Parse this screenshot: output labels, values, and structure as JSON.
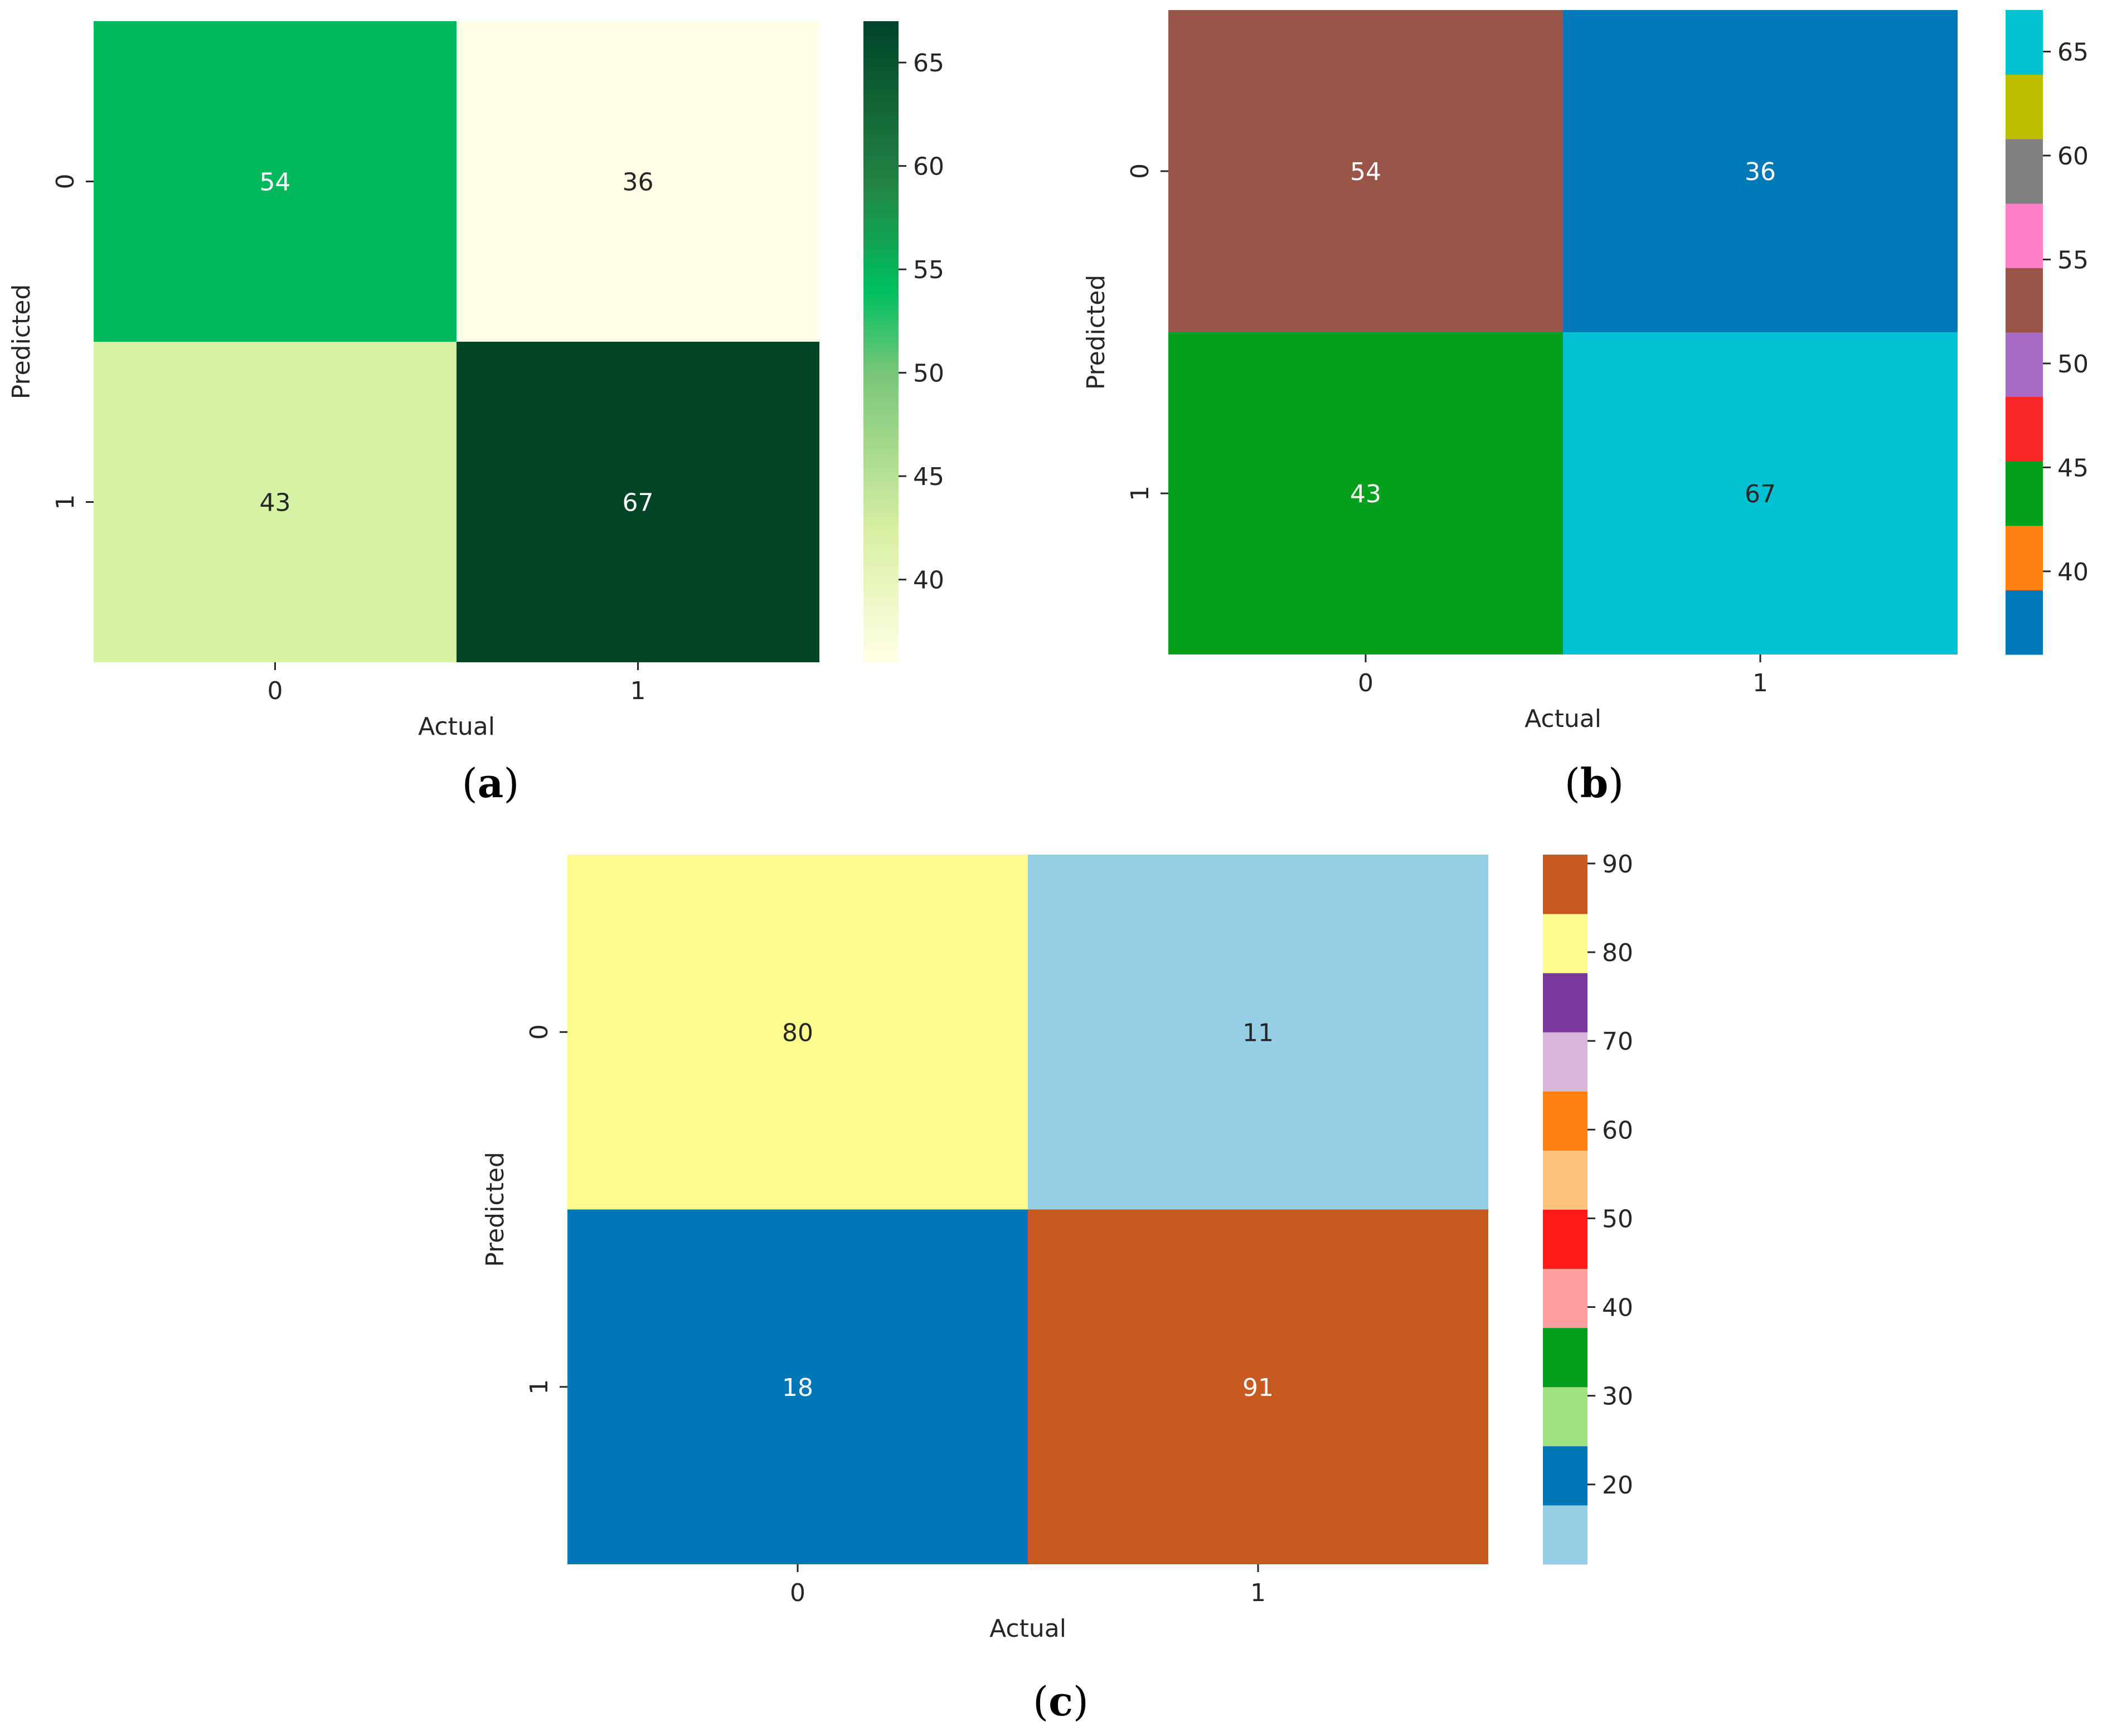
{
  "colors": {
    "text": "#262626",
    "light_text": "#ffffff",
    "greens_map": [
      "#ffffe5",
      "#d9f0a3",
      "#addd8e",
      "#78c679",
      "#00c060",
      "#41ab5d",
      "#238443",
      "#006837",
      "#004529"
    ],
    "tab10_bins": [
      "#1f77b4",
      "#ff7f0e",
      "#2ca02c",
      "#d62728",
      "#9467bd",
      "#8c564b",
      "#e377c2",
      "#7f7f7f",
      "#bcbd22",
      "#17becf"
    ],
    "paired_bins": [
      "#a6cee3",
      "#1f78b4",
      "#b2df8a",
      "#33a02c",
      "#fb9a99",
      "#e31a1c",
      "#fdbf6f",
      "#ff7f00",
      "#cab2d6",
      "#6a3d9a",
      "#ffff99",
      "#b15928"
    ]
  },
  "chart_data": [
    {
      "id": "a",
      "type": "heatmap",
      "caption_letter": "a",
      "xlabel": "Actual",
      "ylabel": "Predicted",
      "x_categories": [
        "0",
        "1"
      ],
      "y_categories": [
        "0",
        "1"
      ],
      "matrix": [
        [
          54,
          36
        ],
        [
          43,
          67
        ]
      ],
      "cell_colors": [
        [
          "#00b85c",
          "#ffffe8"
        ],
        [
          "#d6f2a4",
          "#004526"
        ]
      ],
      "cell_text_colors": [
        [
          "#ffffff",
          "#262626"
        ],
        [
          "#262626",
          "#ffffff"
        ]
      ],
      "colorbar": {
        "cmap": "Greens-like (continuous)",
        "range": [
          36,
          67
        ],
        "ticks": [
          40,
          45,
          50,
          55,
          60,
          65
        ],
        "tick_labels": [
          "40",
          "45",
          "50",
          "55",
          "60",
          "65"
        ]
      }
    },
    {
      "id": "b",
      "type": "heatmap",
      "caption_letter": "b",
      "xlabel": "Actual",
      "ylabel": "Predicted",
      "x_categories": [
        "0",
        "1"
      ],
      "y_categories": [
        "0",
        "1"
      ],
      "matrix": [
        [
          54,
          36
        ],
        [
          43,
          67
        ]
      ],
      "cell_colors": [
        [
          "#9a5548",
          "#0079b8"
        ],
        [
          "#03a01e",
          "#00c1d2"
        ]
      ],
      "cell_text_colors": [
        [
          "#ffffff",
          "#ffffff"
        ],
        [
          "#ffffff",
          "#262626"
        ]
      ],
      "colorbar": {
        "cmap": "tab10 (discrete)",
        "range": [
          36,
          67
        ],
        "bins": [
          "#0079b8",
          "#ff800e",
          "#03a01e",
          "#fa2626",
          "#a66bc2",
          "#9a5548",
          "#ff7ec8",
          "#808080",
          "#bebe00",
          "#00c1d2"
        ],
        "ticks": [
          40,
          45,
          50,
          55,
          60,
          65
        ],
        "tick_labels": [
          "40",
          "45",
          "50",
          "55",
          "60",
          "65"
        ]
      }
    },
    {
      "id": "c",
      "type": "heatmap",
      "caption_letter": "c",
      "xlabel": "Actual",
      "ylabel": "Predicted",
      "x_categories": [
        "0",
        "1"
      ],
      "y_categories": [
        "0",
        "1"
      ],
      "matrix": [
        [
          80,
          11
        ],
        [
          18,
          91
        ]
      ],
      "cell_colors": [
        [
          "#fcfc8e",
          "#96cfe5"
        ],
        [
          "#0078b7",
          "#c85920"
        ]
      ],
      "cell_text_colors": [
        [
          "#262626",
          "#262626"
        ],
        [
          "#ffffff",
          "#ffffff"
        ]
      ],
      "colorbar": {
        "cmap": "Paired (discrete)",
        "range": [
          11,
          91
        ],
        "bins": [
          "#96cfe5",
          "#0078b7",
          "#a0e080",
          "#03a01e",
          "#ff9f9f",
          "#ff1a1a",
          "#ffc27a",
          "#ff800e",
          "#d7b6da",
          "#7a3a9d",
          "#fcfc8e",
          "#c85920"
        ],
        "ticks": [
          20,
          30,
          40,
          50,
          60,
          70,
          80,
          90
        ],
        "tick_labels": [
          "20",
          "30",
          "40",
          "50",
          "60",
          "70",
          "80",
          "90"
        ]
      }
    }
  ]
}
